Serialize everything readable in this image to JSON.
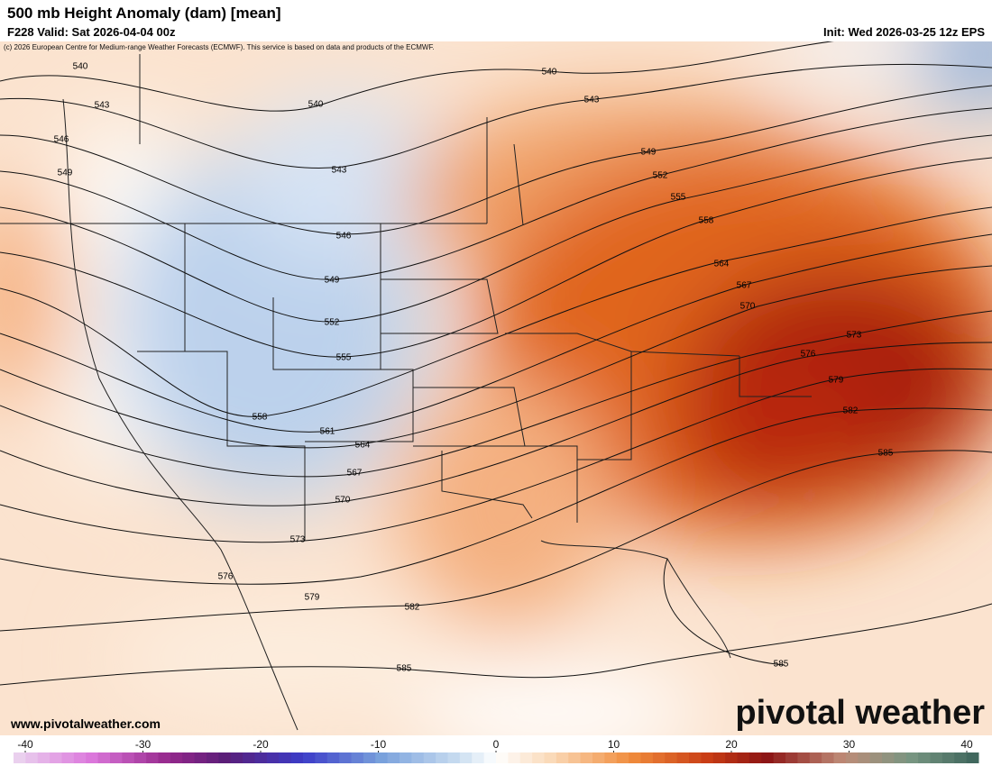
{
  "header": {
    "title": "500 mb Height Anomaly (dam) [mean]",
    "valid": "F228 Valid: Sat 2026-04-04 00z",
    "init": "Init: Wed 2026-03-25 12z EPS",
    "credit": "(c) 2026 European Centre for Medium-range Weather Forecasts (ECMWF). This service is based on data and products of the ECMWF."
  },
  "map": {
    "contour_labels": [
      540,
      543,
      546,
      549,
      540,
      543,
      546,
      549,
      552,
      555,
      558,
      561,
      564,
      567,
      570,
      573,
      576,
      579,
      582,
      585,
      540,
      543,
      549,
      552,
      555,
      558,
      564,
      567,
      570,
      573,
      576,
      579,
      582,
      585,
      585
    ]
  },
  "colorbar": {
    "ticks": [
      -40,
      -30,
      -20,
      -10,
      0,
      10,
      20,
      30,
      40
    ]
  },
  "footer": {
    "website": "www.pivotalweather.com",
    "brand": "pivotal weather"
  }
}
